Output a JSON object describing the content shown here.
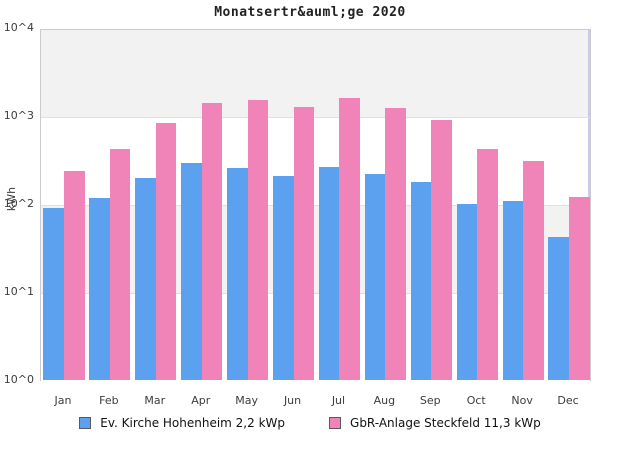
{
  "title": "Monatsertr&auml;ge 2020",
  "colors": {
    "series_blue": "#5ba1f0",
    "series_pink": "#f083b8",
    "band_gray": "#f2f2f2",
    "gridline": "#e0e0e0",
    "plot_border": "#cbcbcb",
    "plot_right_edge": "#c9c9f2",
    "text": "#3c3c3c"
  },
  "chart_data": {
    "type": "bar",
    "title": "Monatsertr&auml;ge 2020",
    "xlabel": "",
    "ylabel": "kWh",
    "yscale": "log",
    "ylim": [
      1,
      10000
    ],
    "ytick_labels": [
      "10^0",
      "10^1",
      "10^2",
      "10^3",
      "10^4"
    ],
    "grid": "horizontal-major",
    "plot_band_colors": [
      "#f2f2f2",
      "#ffffff"
    ],
    "legend_position": "bottom",
    "categories": [
      "Jan",
      "Feb",
      "Mar",
      "Apr",
      "May",
      "Jun",
      "Jul",
      "Aug",
      "Sep",
      "Oct",
      "Nov",
      "Dec"
    ],
    "series": [
      {
        "name": "Ev. Kirche Hohenheim 2,2 kWp",
        "color": "#5ba1f0",
        "unit": "kWh",
        "values": [
          90,
          118,
          197,
          293,
          257,
          208,
          263,
          219,
          178,
          101,
          108,
          42
        ]
      },
      {
        "name": "GbR-Anlage Steckfeld 11,3 kWp",
        "color": "#f083b8",
        "unit": "kWh",
        "values": [
          237,
          420,
          840,
          1400,
          1520,
          1265,
          1600,
          1235,
          900,
          420,
          310,
          121
        ]
      }
    ]
  }
}
